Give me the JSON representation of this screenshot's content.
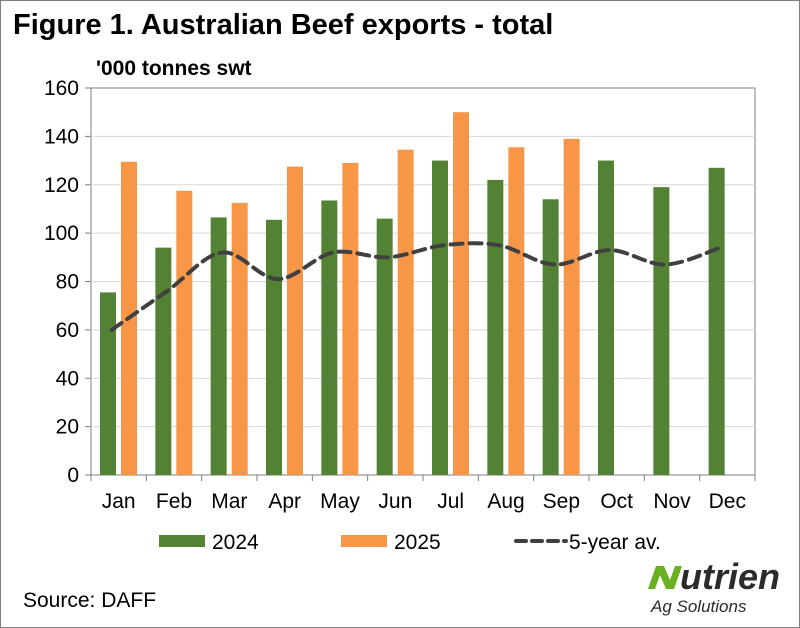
{
  "figure": {
    "title": "Figure 1. Australian Beef exports - total",
    "unit_label": "'000 tonnes swt",
    "source": "Source: DAFF",
    "logo": {
      "name": "Nutrien",
      "tagline": "Ag Solutions"
    }
  },
  "colors": {
    "series_2024": "#548235",
    "series_2025": "#f79646",
    "average_line": "#404040",
    "gridline": "#d9d9d9",
    "axis": "#7f7f7f",
    "logo_green": "#6ab023"
  },
  "chart_data": {
    "type": "bar",
    "title": "Figure 1. Australian Beef exports - total",
    "ylabel": "'000 tonnes swt",
    "xlabel": "",
    "categories": [
      "Jan",
      "Feb",
      "Mar",
      "Apr",
      "May",
      "Jun",
      "Jul",
      "Aug",
      "Sep",
      "Oct",
      "Nov",
      "Dec"
    ],
    "ylim": [
      0,
      160
    ],
    "yticks": [
      0,
      20,
      40,
      60,
      80,
      100,
      120,
      140,
      160
    ],
    "grid": true,
    "legend": "bottom",
    "series": [
      {
        "name": "2024",
        "type": "bar",
        "values": [
          75.5,
          94,
          106.5,
          105.5,
          113.5,
          106,
          130,
          122,
          114,
          130,
          119,
          127
        ]
      },
      {
        "name": "2025",
        "type": "bar",
        "values": [
          129.5,
          117.5,
          112.5,
          127.5,
          129,
          134.5,
          150,
          135.5,
          139,
          null,
          null,
          null
        ]
      },
      {
        "name": "5-year av.",
        "type": "line",
        "style": "dashed",
        "values": [
          60,
          76,
          92,
          81,
          92,
          90,
          95,
          95,
          87,
          93,
          87,
          94
        ]
      }
    ]
  }
}
